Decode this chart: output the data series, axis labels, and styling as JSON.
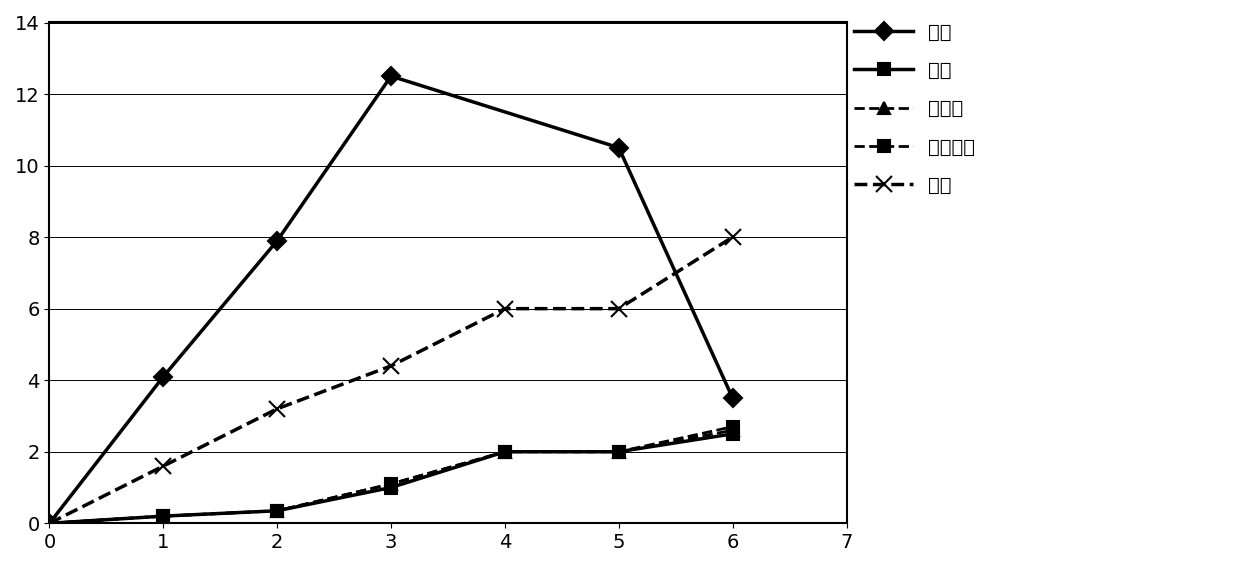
{
  "series": [
    {
      "label": "黛豆",
      "x": [
        0,
        1,
        2,
        3,
        5,
        6
      ],
      "y": [
        0,
        4.1,
        7.9,
        12.5,
        10.5,
        3.5
      ],
      "color": "#000000",
      "linestyle": "-",
      "linewidth": 2.5,
      "marker": "D",
      "markersize": 9,
      "markerfacecolor": "#000000",
      "dashed": false
    },
    {
      "label": "野莓",
      "x": [
        0,
        1,
        2,
        3,
        4,
        5,
        6
      ],
      "y": [
        0,
        0.2,
        0.35,
        1.0,
        2.0,
        2.0,
        2.5
      ],
      "color": "#000000",
      "linestyle": "-",
      "linewidth": 2.5,
      "marker": "s",
      "markersize": 9,
      "markerfacecolor": "#000000",
      "dashed": false
    },
    {
      "label": "桃金娘",
      "x": [
        0,
        1,
        2,
        3,
        4,
        5,
        6
      ],
      "y": [
        0,
        0.2,
        0.35,
        1.1,
        2.0,
        2.0,
        2.6
      ],
      "color": "#000000",
      "linestyle": "--",
      "linewidth": 2.0,
      "marker": "^",
      "markersize": 9,
      "markerfacecolor": "#000000",
      "dashed": true
    },
    {
      "label": "美洲枫香",
      "x": [
        0,
        1,
        2,
        3,
        4,
        5,
        6
      ],
      "y": [
        0,
        0.2,
        0.35,
        1.1,
        2.0,
        2.0,
        2.7
      ],
      "color": "#000000",
      "linestyle": "--",
      "linewidth": 2.0,
      "marker": "s",
      "markersize": 9,
      "markerfacecolor": "#000000",
      "dashed": true
    },
    {
      "label": "垂柳",
      "x": [
        0,
        1,
        2,
        3,
        4,
        5,
        6
      ],
      "y": [
        0,
        1.6,
        3.2,
        4.4,
        6.0,
        6.0,
        8.0
      ],
      "color": "#000000",
      "linestyle": "--",
      "linewidth": 2.5,
      "marker": "x",
      "markersize": 12,
      "markerfacecolor": "#000000",
      "dashed": true
    }
  ],
  "xlim": [
    0,
    7
  ],
  "ylim": [
    0,
    14
  ],
  "xticks": [
    0,
    1,
    2,
    3,
    4,
    5,
    6,
    7
  ],
  "yticks": [
    0,
    2,
    4,
    6,
    8,
    10,
    12,
    14
  ],
  "background_color": "#ffffff",
  "tick_fontsize": 14,
  "legend_fontsize": 14
}
